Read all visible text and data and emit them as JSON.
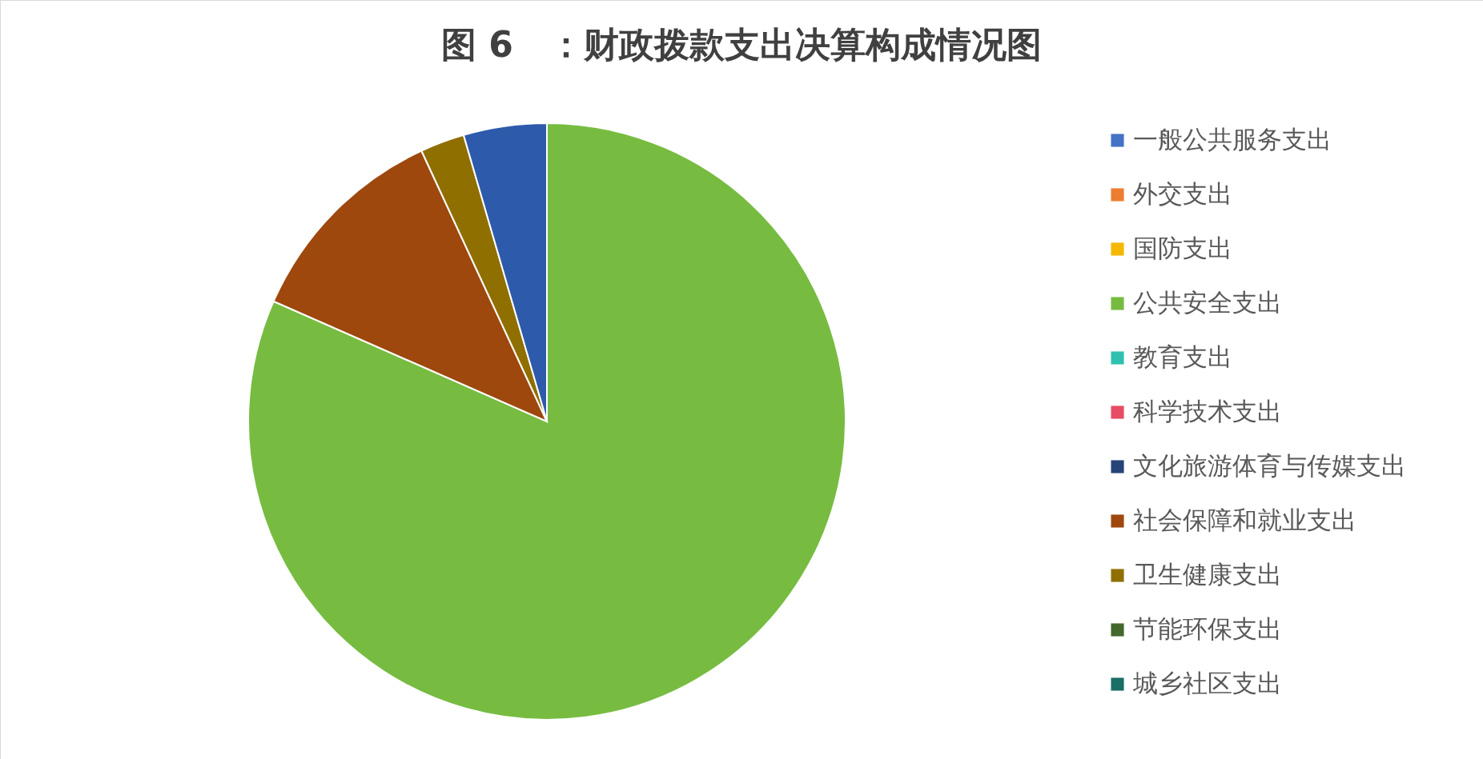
{
  "chart_data": {
    "type": "pie",
    "title": "图 6　：财政拨款支出决算构成情况图",
    "categories": [
      "一般公共服务支出",
      "外交支出",
      "国防支出",
      "公共安全支出",
      "教育支出",
      "科学技术支出",
      "文化旅游体育与传媒支出",
      "社会保障和就业支出",
      "卫生健康支出",
      "节能环保支出",
      "城乡社区支出",
      null
    ],
    "values": [
      0,
      0,
      0,
      81.6,
      0,
      0,
      0,
      11.5,
      2.4,
      0,
      0,
      4.5
    ],
    "colors": [
      "#4472c4",
      "#ed7d31",
      "#f5b800",
      "#77bc41",
      "#2fc0b0",
      "#e64c65",
      "#264478",
      "#9e480e",
      "#8f6f00",
      "#43682b",
      "#1a6e66",
      "#2e5aab"
    ],
    "legend": "right"
  }
}
